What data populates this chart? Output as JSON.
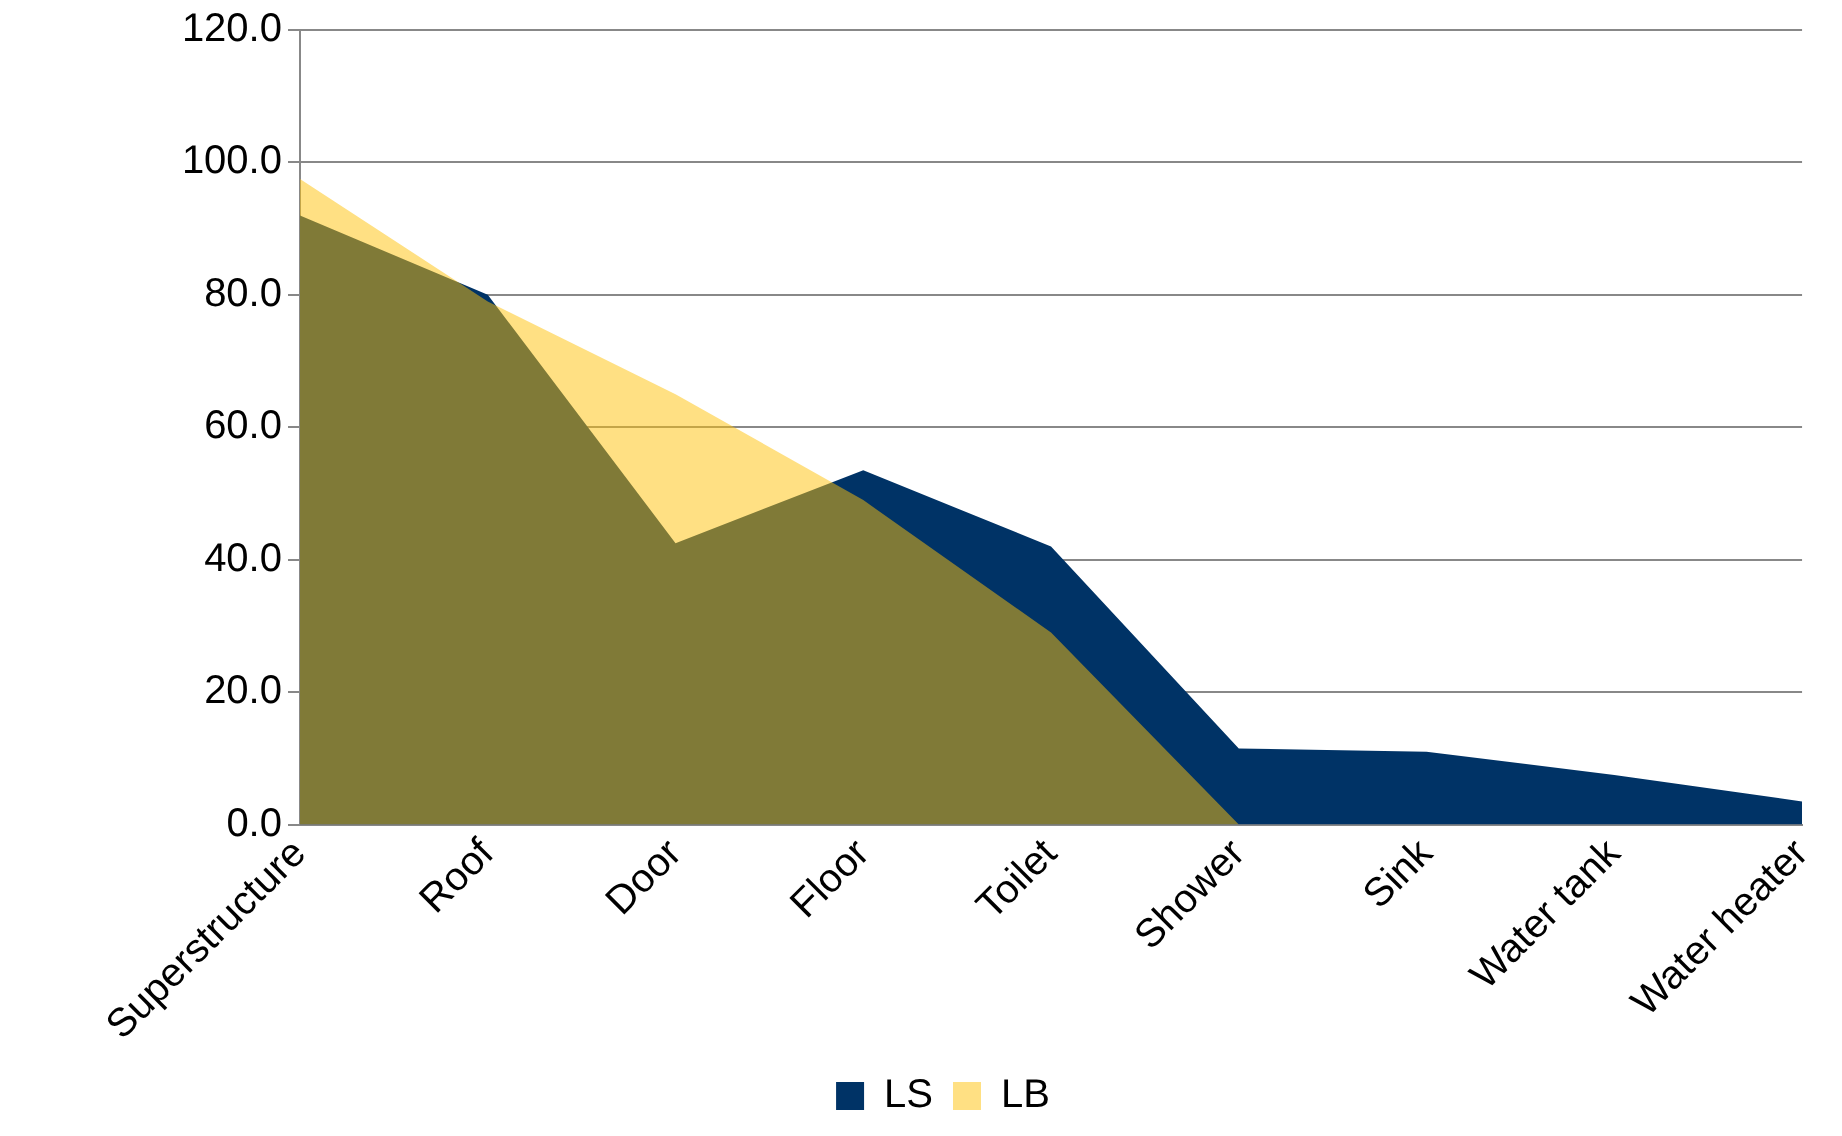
{
  "chart_data": {
    "type": "area",
    "categories": [
      "Superstructure",
      "Roof",
      "Door",
      "Floor",
      "Toilet",
      "Shower",
      "Sink",
      "Water tank",
      "Water heater"
    ],
    "series": [
      {
        "name": "LS",
        "color": "#003366",
        "values": [
          92,
          80,
          42.5,
          53.5,
          42,
          11.5,
          11,
          7.5,
          3.5
        ]
      },
      {
        "name": "LB",
        "color": "#ffc108",
        "values": [
          97.5,
          79,
          65,
          49,
          29,
          0,
          0,
          0,
          0
        ]
      }
    ],
    "ylim": [
      0,
      120
    ],
    "yticks": [
      {
        "value": 0,
        "label": "0.0"
      },
      {
        "value": 20,
        "label": "20.0"
      },
      {
        "value": 40,
        "label": "40.0"
      },
      {
        "value": 60,
        "label": "60.0"
      },
      {
        "value": 80,
        "label": "80.0"
      },
      {
        "value": 100,
        "label": "100.0"
      },
      {
        "value": 120,
        "label": "120.0"
      }
    ],
    "grid": "y",
    "legend": "bottom"
  }
}
